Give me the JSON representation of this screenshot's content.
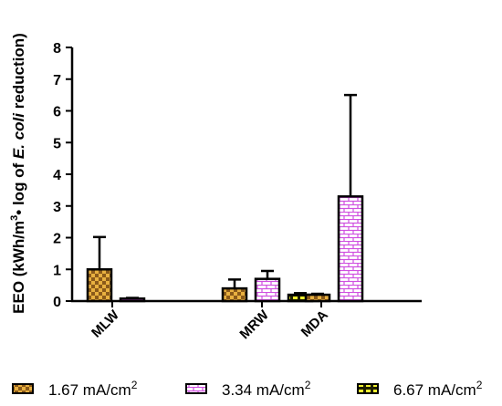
{
  "chart_data": {
    "type": "bar",
    "categories": [
      "MLW",
      "MRW",
      "MDA"
    ],
    "series": [
      {
        "name": "1.67 mA/cm",
        "name_sup": "2",
        "values": [
          1.0,
          0.4,
          0.2
        ],
        "errors": [
          1.02,
          0.28,
          0.03
        ],
        "color": "#8B5A1A",
        "pattern": "checker"
      },
      {
        "name": "3.34 mA/cm",
        "name_sup": "2",
        "values": [
          0.08,
          0.7,
          3.3
        ],
        "errors": [
          0.02,
          0.25,
          3.2
        ],
        "color": "#E070E8",
        "pattern": "brick"
      },
      {
        "name": "6.67 mA/cm",
        "name_sup": "2",
        "values": [
          0.0,
          0.2,
          0.0
        ],
        "errors": [
          0.0,
          0.05,
          0.0
        ],
        "color": "#E8E82A",
        "pattern": "dash"
      }
    ],
    "ylim": [
      0,
      8
    ],
    "yticks": [
      0,
      1,
      2,
      3,
      4,
      5,
      6,
      7,
      8
    ],
    "ylabel": {
      "part1": "EEO (kWh/m",
      "sup": "3",
      "part2": "• log of ",
      "italic": "E. coli",
      "part3": " reduction)"
    },
    "legend_position": "bottom",
    "grid": false
  }
}
